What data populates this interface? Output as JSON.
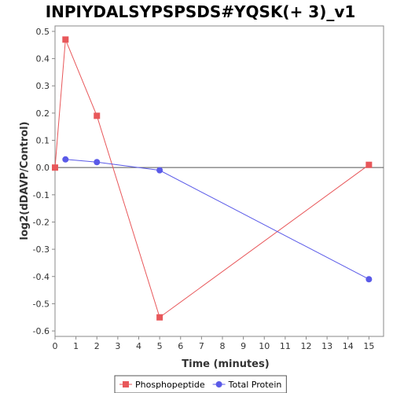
{
  "chart_data": {
    "type": "line",
    "title": "INPIYDALSYPSPSDS#YQSK(+ 3)_v1",
    "xlabel": "Time (minutes)",
    "ylabel": "log2(dDAVP/Control)",
    "xlim": [
      0,
      15.7
    ],
    "ylim": [
      -0.62,
      0.52
    ],
    "xticks": [
      0,
      1,
      2,
      3,
      4,
      5,
      6,
      7,
      8,
      9,
      10,
      11,
      12,
      13,
      14,
      15
    ],
    "yticks": [
      0.5,
      0.4,
      0.3,
      0.2,
      0.1,
      0.0,
      -0.1,
      -0.2,
      -0.3,
      -0.4,
      -0.5,
      -0.6
    ],
    "ytick_labels": [
      "0.5",
      "0.4",
      "0.3",
      "0.2",
      "0.1",
      "0.0",
      "-0.1",
      "-0.2",
      "-0.3",
      "-0.4",
      "-0.5",
      "-0.6"
    ],
    "grid": false,
    "zero_line": true,
    "legend_position": "bottom-center",
    "series": [
      {
        "name": "Phosphopeptide",
        "color": "#e8575a",
        "marker": "square",
        "x": [
          0,
          0.5,
          2,
          5,
          15
        ],
        "y": [
          0.0,
          0.47,
          0.19,
          -0.55,
          0.01
        ]
      },
      {
        "name": "Total Protein",
        "color": "#5a5ae8",
        "marker": "circle",
        "x": [
          0.5,
          2,
          5,
          15
        ],
        "y": [
          0.03,
          0.02,
          -0.01,
          -0.41
        ]
      }
    ]
  }
}
